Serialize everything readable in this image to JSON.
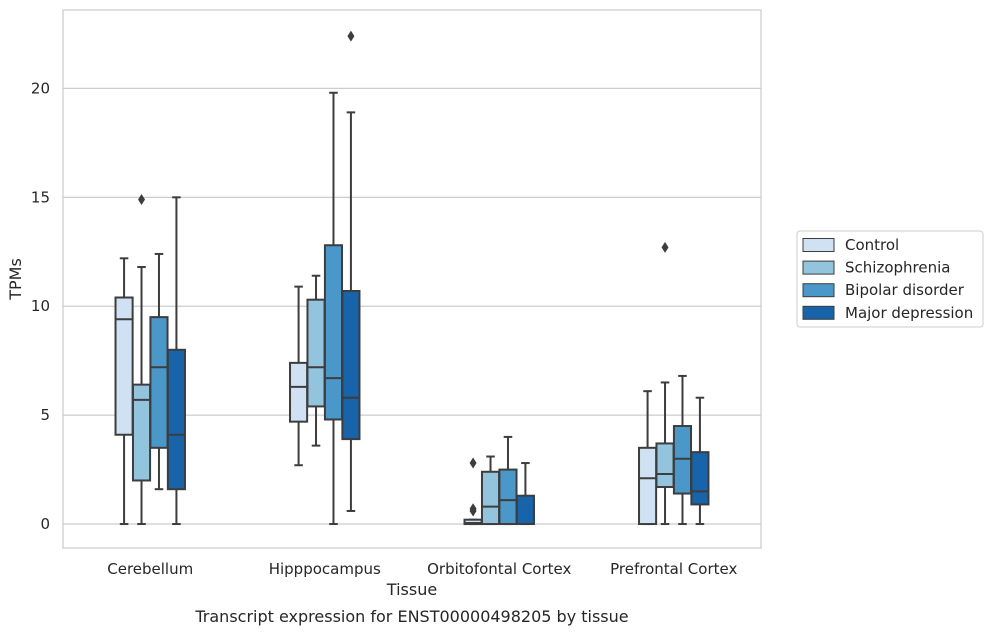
{
  "chart_data": {
    "type": "box",
    "caption": "Transcript expression for ENST00000498205 by tissue",
    "xlabel": "Tissue",
    "ylabel": "TPMs",
    "ylim": [
      -1.1,
      23.6
    ],
    "yticks": [
      0,
      5,
      10,
      15,
      20
    ],
    "grid": "horizontal",
    "legend_position": "right",
    "categories": [
      "Cerebellum",
      "Hipppocampus",
      "Orbitofontal Cortex",
      "Prefrontal Cortex"
    ],
    "series": [
      {
        "name": "Control",
        "color": "#cfe1f2",
        "boxes": [
          {
            "whisker_low": 0,
            "q1": 4.1,
            "median": 9.4,
            "q3": 10.4,
            "whisker_high": 12.2,
            "outliers": []
          },
          {
            "whisker_low": 2.7,
            "q1": 4.7,
            "median": 6.3,
            "q3": 7.4,
            "whisker_high": 10.9,
            "outliers": []
          },
          {
            "whisker_low": 0,
            "q1": 0,
            "median": 0.05,
            "q3": 0.2,
            "whisker_high": 0.2,
            "outliers": [
              0.6,
              0.7,
              2.8
            ]
          },
          {
            "whisker_low": 0,
            "q1": 0,
            "median": 2.1,
            "q3": 3.5,
            "whisker_high": 6.1,
            "outliers": []
          }
        ]
      },
      {
        "name": "Schizophrenia",
        "color": "#93c4de",
        "boxes": [
          {
            "whisker_low": 0,
            "q1": 2.0,
            "median": 5.7,
            "q3": 6.4,
            "whisker_high": 11.8,
            "outliers": [
              14.9
            ]
          },
          {
            "whisker_low": 3.6,
            "q1": 5.4,
            "median": 7.2,
            "q3": 10.3,
            "whisker_high": 11.4,
            "outliers": []
          },
          {
            "whisker_low": 0,
            "q1": 0,
            "median": 0.8,
            "q3": 2.4,
            "whisker_high": 3.1,
            "outliers": []
          },
          {
            "whisker_low": 0,
            "q1": 1.7,
            "median": 2.3,
            "q3": 3.7,
            "whisker_high": 6.5,
            "outliers": [
              12.7
            ]
          }
        ]
      },
      {
        "name": "Bipolar disorder",
        "color": "#4a98c9",
        "boxes": [
          {
            "whisker_low": 1.6,
            "q1": 3.5,
            "median": 7.2,
            "q3": 9.5,
            "whisker_high": 12.4,
            "outliers": []
          },
          {
            "whisker_low": 0,
            "q1": 4.8,
            "median": 6.7,
            "q3": 12.8,
            "whisker_high": 19.8,
            "outliers": []
          },
          {
            "whisker_low": 0,
            "q1": 0,
            "median": 1.1,
            "q3": 2.5,
            "whisker_high": 4.0,
            "outliers": []
          },
          {
            "whisker_low": 0,
            "q1": 1.4,
            "median": 3.0,
            "q3": 4.5,
            "whisker_high": 6.8,
            "outliers": []
          }
        ]
      },
      {
        "name": "Major depression",
        "color": "#1764ab",
        "boxes": [
          {
            "whisker_low": 0,
            "q1": 1.6,
            "median": 4.1,
            "q3": 8.0,
            "whisker_high": 15.0,
            "outliers": []
          },
          {
            "whisker_low": 0.6,
            "q1": 3.9,
            "median": 5.8,
            "q3": 10.7,
            "whisker_high": 18.9,
            "outliers": [
              22.4
            ]
          },
          {
            "whisker_low": 0,
            "q1": 0,
            "median": 0,
            "q3": 1.3,
            "whisker_high": 2.8,
            "outliers": []
          },
          {
            "whisker_low": 0,
            "q1": 0.9,
            "median": 1.5,
            "q3": 3.3,
            "whisker_high": 5.8,
            "outliers": []
          }
        ]
      }
    ]
  }
}
